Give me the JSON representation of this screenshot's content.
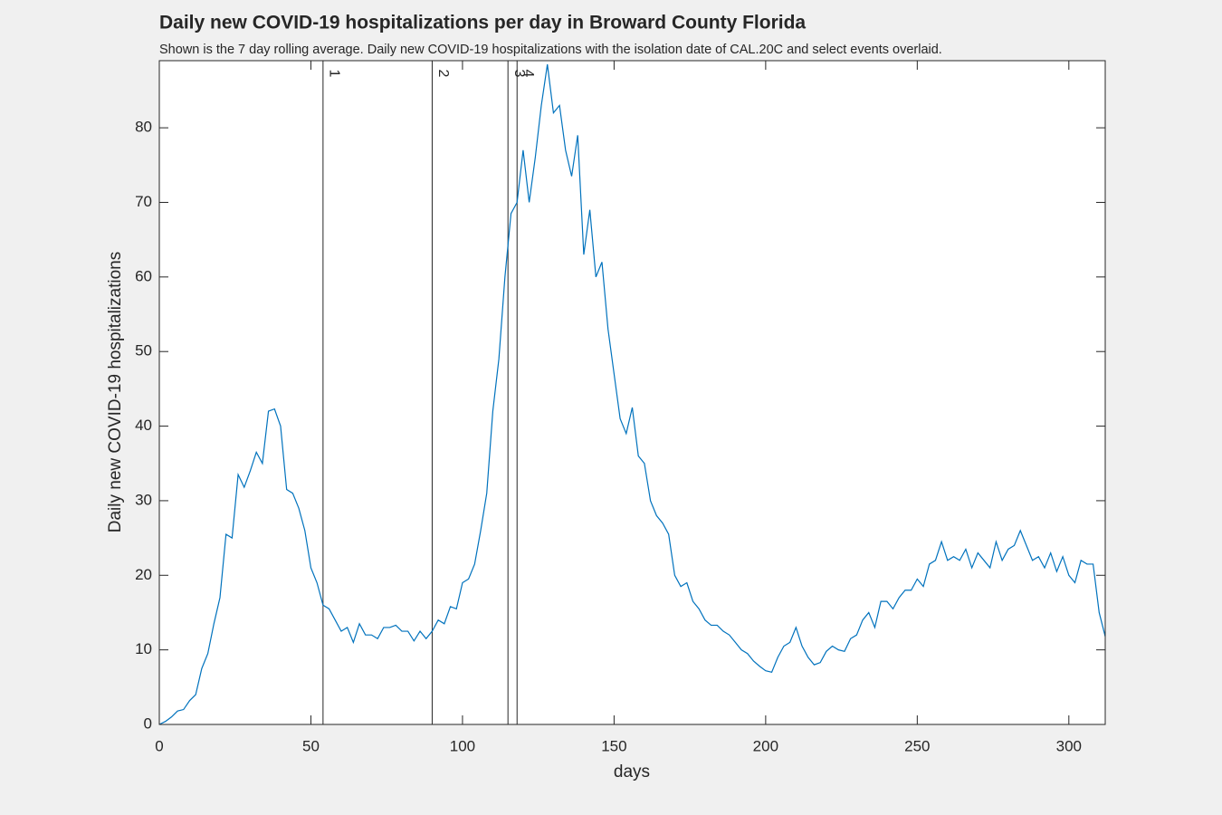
{
  "chart_data": {
    "type": "line",
    "title": "Daily new COVID-19 hospitalizations per day in Broward County Florida",
    "subtitle": "Shown is the 7 day rolling average. Daily new COVID-19 hospitalizations with the isolation date of CAL.20C and select events overlaid.",
    "xlabel": "days",
    "ylabel": "Daily new COVID-19 hospitalizations",
    "color": "#0072bd",
    "x": [
      0,
      2,
      4,
      6,
      8,
      10,
      12,
      14,
      16,
      18,
      20,
      22,
      24,
      26,
      28,
      30,
      32,
      34,
      36,
      38,
      40,
      42,
      44,
      46,
      48,
      50,
      52,
      54,
      56,
      58,
      60,
      62,
      64,
      66,
      68,
      70,
      72,
      74,
      76,
      78,
      80,
      82,
      84,
      86,
      88,
      90,
      92,
      94,
      96,
      98,
      100,
      102,
      104,
      106,
      108,
      110,
      112,
      114,
      116,
      118,
      120,
      122,
      124,
      126,
      128,
      130,
      132,
      134,
      136,
      138,
      140,
      142,
      144,
      146,
      148,
      150,
      152,
      154,
      156,
      158,
      160,
      162,
      164,
      166,
      168,
      170,
      172,
      174,
      176,
      178,
      180,
      182,
      184,
      186,
      188,
      190,
      192,
      194,
      196,
      198,
      200,
      202,
      204,
      206,
      208,
      210,
      212,
      214,
      216,
      218,
      220,
      222,
      224,
      226,
      228,
      230,
      232,
      234,
      236,
      238,
      240,
      242,
      244,
      246,
      248,
      250,
      252,
      254,
      256,
      258,
      260,
      262,
      264,
      266,
      268,
      270,
      272,
      274,
      276,
      278,
      280,
      282,
      284,
      286,
      288,
      290,
      292,
      294,
      296,
      298,
      300,
      302,
      304,
      306,
      308,
      310,
      312
    ],
    "values": [
      0,
      0.4,
      1,
      1.8,
      2,
      3.2,
      4,
      7.5,
      9.5,
      13.5,
      17,
      25.5,
      25,
      33.5,
      31.8,
      34,
      36.5,
      35,
      42,
      42.3,
      40,
      31.5,
      31,
      29,
      26,
      21,
      19,
      16,
      15.5,
      14,
      12.5,
      13,
      11,
      13.5,
      12,
      12,
      11.5,
      13,
      13,
      13.3,
      12.5,
      12.5,
      11.2,
      12.5,
      11.5,
      12.5,
      14,
      13.5,
      15.8,
      15.5,
      19,
      19.5,
      21.5,
      26,
      31,
      42,
      49,
      60,
      68.5,
      70,
      77,
      70,
      76,
      83,
      88.5,
      82,
      83,
      77,
      73.5,
      79,
      63,
      69,
      60,
      62,
      53,
      47,
      41,
      39,
      42.5,
      36,
      35,
      30,
      28,
      27,
      25.5,
      20,
      18.5,
      19,
      16.5,
      15.5,
      14,
      13.3,
      13.3,
      12.5,
      12,
      11,
      10,
      9.5,
      8.5,
      7.8,
      7.2,
      7,
      9,
      10.5,
      11,
      13,
      10.5,
      9,
      8,
      8.3,
      9.8,
      10.5,
      10,
      9.8,
      11.5,
      12,
      14,
      15,
      13,
      16.5,
      16.5,
      15.5,
      17,
      18,
      18,
      19.5,
      18.5,
      21.5,
      22,
      24.5,
      22,
      22.5,
      22,
      23.5,
      21,
      23,
      22,
      21,
      24.5,
      22,
      23.5,
      24,
      26,
      24,
      22,
      22.5,
      21,
      23,
      20.5,
      22.5,
      20,
      19,
      22,
      21.5,
      21.5,
      15,
      11.8
    ],
    "events": [
      {
        "x": 54,
        "label": "1"
      },
      {
        "x": 90,
        "label": "2"
      },
      {
        "x": 115,
        "label": "3"
      },
      {
        "x": 118,
        "label": "4"
      }
    ],
    "xlim": [
      0,
      312
    ],
    "ylim": [
      0,
      89
    ],
    "xticks": [
      0,
      50,
      100,
      150,
      200,
      250,
      300
    ],
    "yticks": [
      0,
      10,
      20,
      30,
      40,
      50,
      60,
      70,
      80
    ]
  }
}
